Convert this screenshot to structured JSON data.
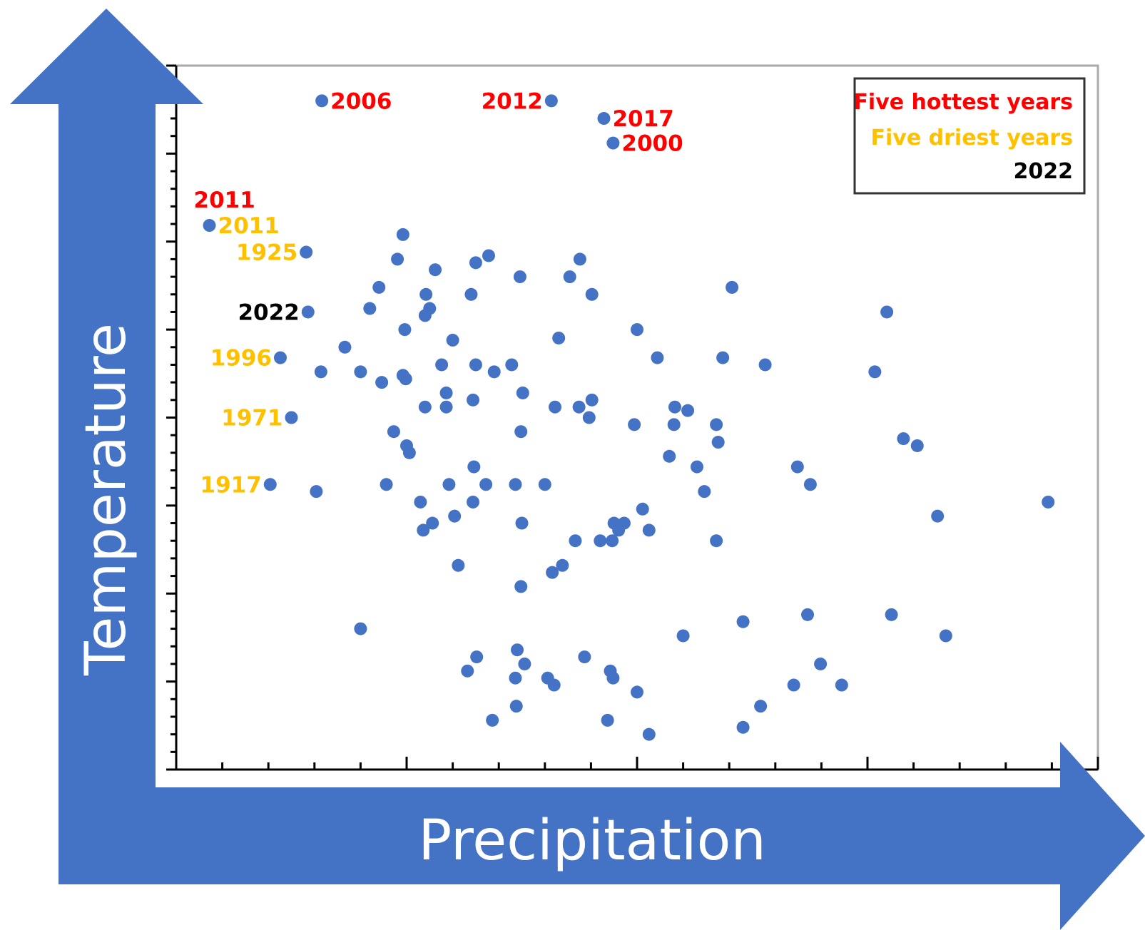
{
  "axes": {
    "x_title": "Precipitation",
    "y_title": "Temperature"
  },
  "colors": {
    "arrow": "#4472c4",
    "point": "#4472c4",
    "hottest": "#ff0000",
    "driest": "#ffc000",
    "current": "#000000"
  },
  "legend": {
    "placement": "top-right",
    "entries": [
      {
        "label": "Five hottest years",
        "color": "#ff0000"
      },
      {
        "label": "Five driest years",
        "color": "#ffc000"
      },
      {
        "label": "2022",
        "color": "#000000"
      }
    ]
  },
  "chart_data": {
    "type": "scatter",
    "xlabel": "Precipitation",
    "ylabel": "Temperature",
    "xlim": [
      0,
      100
    ],
    "ylim": [
      0,
      100
    ],
    "grid": false,
    "tick_labels": false,
    "points": [
      {
        "x": 15.8,
        "y": 95.0,
        "label": "2006",
        "label_color": "#ff0000",
        "label_side": "right"
      },
      {
        "x": 40.7,
        "y": 95.0,
        "label": "2012",
        "label_color": "#ff0000",
        "label_side": "left"
      },
      {
        "x": 46.4,
        "y": 92.5,
        "label": "2017",
        "label_color": "#ff0000",
        "label_side": "right"
      },
      {
        "x": 47.4,
        "y": 89.0,
        "label": "2000",
        "label_color": "#ff0000",
        "label_side": "right"
      },
      {
        "x": 3.6,
        "y": 77.3,
        "label": "2011",
        "label_color": "#ff0000",
        "label_side": "above"
      },
      {
        "x": 3.6,
        "y": 77.3,
        "label": "2011",
        "label_color": "#ffc000",
        "label_side": "right"
      },
      {
        "x": 14.1,
        "y": 73.5,
        "label": "1925",
        "label_color": "#ffc000",
        "label_side": "left"
      },
      {
        "x": 14.3,
        "y": 65.0,
        "label": "2022",
        "label_color": "#000000",
        "label_side": "left"
      },
      {
        "x": 11.3,
        "y": 58.5,
        "label": "1996",
        "label_color": "#ffc000",
        "label_side": "left"
      },
      {
        "x": 12.5,
        "y": 50.0,
        "label": "1971",
        "label_color": "#ffc000",
        "label_side": "left"
      },
      {
        "x": 10.2,
        "y": 40.5,
        "label": "1917",
        "label_color": "#ffc000",
        "label_side": "left"
      },
      {
        "x": 24.6,
        "y": 76.0
      },
      {
        "x": 24.0,
        "y": 72.5
      },
      {
        "x": 28.1,
        "y": 71.0
      },
      {
        "x": 32.5,
        "y": 72.0
      },
      {
        "x": 33.9,
        "y": 73.0
      },
      {
        "x": 37.3,
        "y": 70.0
      },
      {
        "x": 42.7,
        "y": 70.0
      },
      {
        "x": 43.8,
        "y": 72.5
      },
      {
        "x": 22.0,
        "y": 68.5
      },
      {
        "x": 27.1,
        "y": 67.5
      },
      {
        "x": 32.0,
        "y": 67.5
      },
      {
        "x": 45.1,
        "y": 67.5
      },
      {
        "x": 60.3,
        "y": 68.5
      },
      {
        "x": 77.1,
        "y": 65.0
      },
      {
        "x": 21.0,
        "y": 65.5
      },
      {
        "x": 27.5,
        "y": 65.5
      },
      {
        "x": 24.8,
        "y": 62.5
      },
      {
        "x": 30.0,
        "y": 61.0
      },
      {
        "x": 41.5,
        "y": 61.3
      },
      {
        "x": 50.0,
        "y": 62.5
      },
      {
        "x": 27.0,
        "y": 64.5
      },
      {
        "x": 18.3,
        "y": 60.0
      },
      {
        "x": 20.0,
        "y": 56.5
      },
      {
        "x": 28.8,
        "y": 57.5
      },
      {
        "x": 32.5,
        "y": 57.5
      },
      {
        "x": 36.4,
        "y": 57.5
      },
      {
        "x": 34.5,
        "y": 56.5
      },
      {
        "x": 52.2,
        "y": 58.5
      },
      {
        "x": 59.3,
        "y": 58.5
      },
      {
        "x": 63.9,
        "y": 57.5
      },
      {
        "x": 75.8,
        "y": 56.5
      },
      {
        "x": 15.7,
        "y": 56.5
      },
      {
        "x": 24.6,
        "y": 56.0
      },
      {
        "x": 24.9,
        "y": 55.5
      },
      {
        "x": 22.3,
        "y": 55.0
      },
      {
        "x": 29.3,
        "y": 53.5
      },
      {
        "x": 37.6,
        "y": 53.5
      },
      {
        "x": 32.2,
        "y": 52.5
      },
      {
        "x": 45.1,
        "y": 52.5
      },
      {
        "x": 27.0,
        "y": 51.5
      },
      {
        "x": 29.3,
        "y": 51.5
      },
      {
        "x": 41.1,
        "y": 51.5
      },
      {
        "x": 43.7,
        "y": 51.5
      },
      {
        "x": 54.1,
        "y": 51.5
      },
      {
        "x": 55.5,
        "y": 51.0
      },
      {
        "x": 44.8,
        "y": 50.0
      },
      {
        "x": 49.7,
        "y": 49.0
      },
      {
        "x": 54.0,
        "y": 49.0
      },
      {
        "x": 58.6,
        "y": 49.0
      },
      {
        "x": 37.4,
        "y": 48.0
      },
      {
        "x": 23.6,
        "y": 48.0
      },
      {
        "x": 25.0,
        "y": 46.0
      },
      {
        "x": 25.3,
        "y": 45.0
      },
      {
        "x": 58.8,
        "y": 46.5
      },
      {
        "x": 53.5,
        "y": 44.5
      },
      {
        "x": 78.9,
        "y": 47.0
      },
      {
        "x": 80.4,
        "y": 46.0
      },
      {
        "x": 32.3,
        "y": 43.0
      },
      {
        "x": 56.5,
        "y": 43.0
      },
      {
        "x": 67.4,
        "y": 43.0
      },
      {
        "x": 22.8,
        "y": 40.5
      },
      {
        "x": 29.6,
        "y": 40.5
      },
      {
        "x": 33.6,
        "y": 40.5
      },
      {
        "x": 36.8,
        "y": 40.5
      },
      {
        "x": 40.0,
        "y": 40.5
      },
      {
        "x": 68.8,
        "y": 40.5
      },
      {
        "x": 15.2,
        "y": 39.5
      },
      {
        "x": 57.3,
        "y": 39.5
      },
      {
        "x": 26.5,
        "y": 38.0
      },
      {
        "x": 32.2,
        "y": 38.0
      },
      {
        "x": 50.6,
        "y": 37.0
      },
      {
        "x": 30.2,
        "y": 36.0
      },
      {
        "x": 37.5,
        "y": 35.0
      },
      {
        "x": 27.8,
        "y": 35.0
      },
      {
        "x": 47.5,
        "y": 35.0
      },
      {
        "x": 48.6,
        "y": 35.0
      },
      {
        "x": 48.0,
        "y": 34.0
      },
      {
        "x": 51.3,
        "y": 34.0
      },
      {
        "x": 94.6,
        "y": 38.0
      },
      {
        "x": 82.6,
        "y": 36.0
      },
      {
        "x": 26.8,
        "y": 34.0
      },
      {
        "x": 43.3,
        "y": 32.5
      },
      {
        "x": 46.0,
        "y": 32.5
      },
      {
        "x": 47.3,
        "y": 32.5
      },
      {
        "x": 58.6,
        "y": 32.5
      },
      {
        "x": 30.6,
        "y": 29.0
      },
      {
        "x": 41.9,
        "y": 29.0
      },
      {
        "x": 40.8,
        "y": 28.0
      },
      {
        "x": 37.4,
        "y": 26.0
      },
      {
        "x": 20.0,
        "y": 20.0
      },
      {
        "x": 61.5,
        "y": 21.0
      },
      {
        "x": 55.0,
        "y": 19.0
      },
      {
        "x": 68.5,
        "y": 22.0
      },
      {
        "x": 77.6,
        "y": 22.0
      },
      {
        "x": 83.5,
        "y": 19.0
      },
      {
        "x": 37.0,
        "y": 17.0
      },
      {
        "x": 44.3,
        "y": 16.0
      },
      {
        "x": 32.6,
        "y": 16.0
      },
      {
        "x": 37.8,
        "y": 15.0
      },
      {
        "x": 69.9,
        "y": 15.0
      },
      {
        "x": 31.6,
        "y": 14.0
      },
      {
        "x": 47.1,
        "y": 14.0
      },
      {
        "x": 36.8,
        "y": 13.0
      },
      {
        "x": 40.3,
        "y": 13.0
      },
      {
        "x": 47.4,
        "y": 13.0
      },
      {
        "x": 41.0,
        "y": 12.0
      },
      {
        "x": 67.0,
        "y": 12.0
      },
      {
        "x": 72.2,
        "y": 12.0
      },
      {
        "x": 50.0,
        "y": 11.0
      },
      {
        "x": 36.9,
        "y": 9.0
      },
      {
        "x": 63.4,
        "y": 9.0
      },
      {
        "x": 34.3,
        "y": 7.0
      },
      {
        "x": 46.8,
        "y": 7.0
      },
      {
        "x": 61.5,
        "y": 6.0
      },
      {
        "x": 51.3,
        "y": 5.0
      }
    ]
  }
}
